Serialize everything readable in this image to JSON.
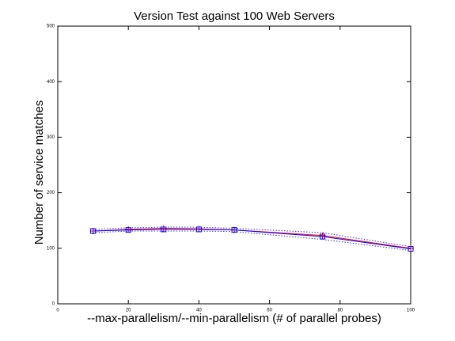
{
  "chart_data": {
    "type": "line",
    "title": "Version Test against 100 Web Servers",
    "x_label": "--max-parallelism/--min-parallelism (# of parallel probes)",
    "y_label": "Number of service matches",
    "x": [
      10,
      20,
      30,
      40,
      50,
      75,
      100
    ],
    "series": [
      {
        "color": "#ff0000",
        "marker": "plus",
        "dashed": false,
        "values": [
          131,
          134,
          136,
          135,
          133,
          123,
          100
        ]
      },
      {
        "color": "#0000ff",
        "marker": "square",
        "dashed": false,
        "values": [
          131,
          133,
          134,
          134,
          133,
          121,
          99
        ]
      },
      {
        "color": "#3333ff",
        "marker": "none",
        "dashed": true,
        "values": [
          134,
          137,
          138,
          138,
          136,
          128,
          103
        ]
      },
      {
        "color": "#3333ff",
        "marker": "none",
        "dashed": true,
        "values": [
          128,
          131,
          131,
          131,
          130,
          116,
          96
        ]
      }
    ],
    "xlim": [
      0,
      100
    ],
    "xticks": [
      0,
      20,
      40,
      60,
      80,
      100
    ],
    "ylim": [
      0,
      500
    ],
    "yticks": [
      0,
      100,
      200,
      300,
      400,
      500
    ],
    "grid": false
  }
}
